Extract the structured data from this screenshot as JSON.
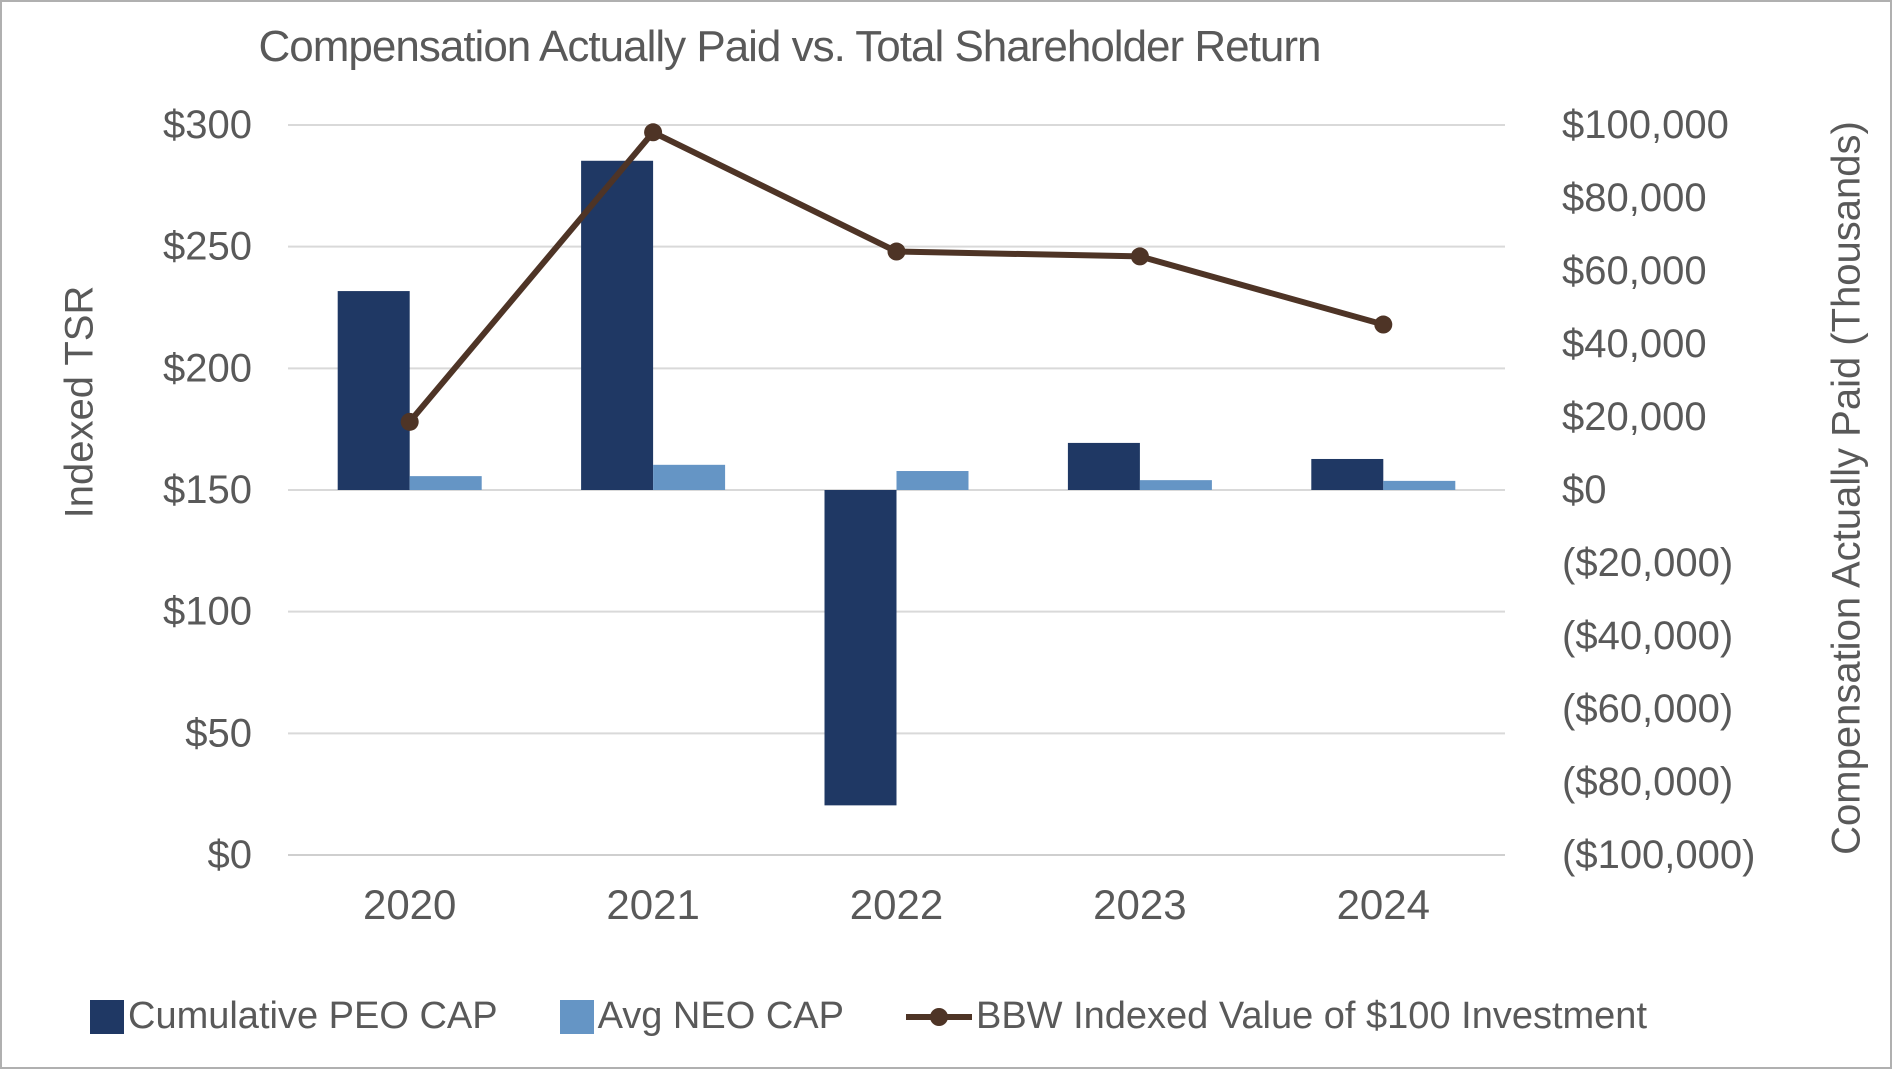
{
  "title": "Compensation Actually Paid vs. Total Shareholder Return",
  "colors": {
    "peo_bar": "#1f3864",
    "neo_bar": "#6595c5",
    "tsr_line": "#4e3426",
    "text": "#595959",
    "gridline": "#d9d9d9",
    "axis_line": "#cfcfcf",
    "frame_border": "#b0b0b0"
  },
  "chart_data": {
    "type": "combo (bar + line, dual axis)",
    "title": "Compensation Actually Paid vs. Total Shareholder Return",
    "categories": [
      "2020",
      "2021",
      "2022",
      "2023",
      "2024"
    ],
    "series": [
      {
        "name": "Cumulative PEO CAP",
        "type": "bar",
        "axis": "right",
        "color": "#1f3864",
        "values": [
          54500,
          90200,
          -86400,
          12900,
          8500
        ]
      },
      {
        "name": "Avg NEO CAP",
        "type": "bar",
        "axis": "right",
        "color": "#6595c5",
        "values": [
          3800,
          6900,
          5200,
          2700,
          2500
        ]
      },
      {
        "name": "BBW Indexed Value of $100 Investment",
        "type": "line",
        "axis": "left",
        "color": "#4e3426",
        "values": [
          178,
          297,
          248,
          246,
          218
        ]
      }
    ],
    "left_axis": {
      "title": "Indexed TSR",
      "min": 0,
      "max": 300,
      "step": 50,
      "tick_labels": [
        "$300",
        "$250",
        "$200",
        "$150",
        "$100",
        "$50",
        "$0"
      ]
    },
    "right_axis": {
      "title": "Compensation Actually Paid (Thousands)",
      "min": -100000,
      "max": 100000,
      "step": 20000,
      "tick_labels": [
        "$100,000",
        "$80,000",
        "$60,000",
        "$40,000",
        "$20,000",
        "$0",
        "($20,000)",
        "($40,000)",
        "($60,000)",
        "($80,000)",
        "($100,000)"
      ]
    },
    "x_axis": {
      "tick_labels": [
        "2020",
        "2021",
        "2022",
        "2023",
        "2024"
      ]
    },
    "grid": "horizontal",
    "legend_position": "bottom"
  },
  "legend": {
    "items": [
      {
        "label": "Cumulative PEO CAP",
        "swatch": "square",
        "color": "#1f3864"
      },
      {
        "label": "Avg NEO CAP",
        "swatch": "square",
        "color": "#6595c5"
      },
      {
        "label": "BBW Indexed Value of $100 Investment",
        "swatch": "line-marker",
        "color": "#4e3426"
      }
    ]
  }
}
